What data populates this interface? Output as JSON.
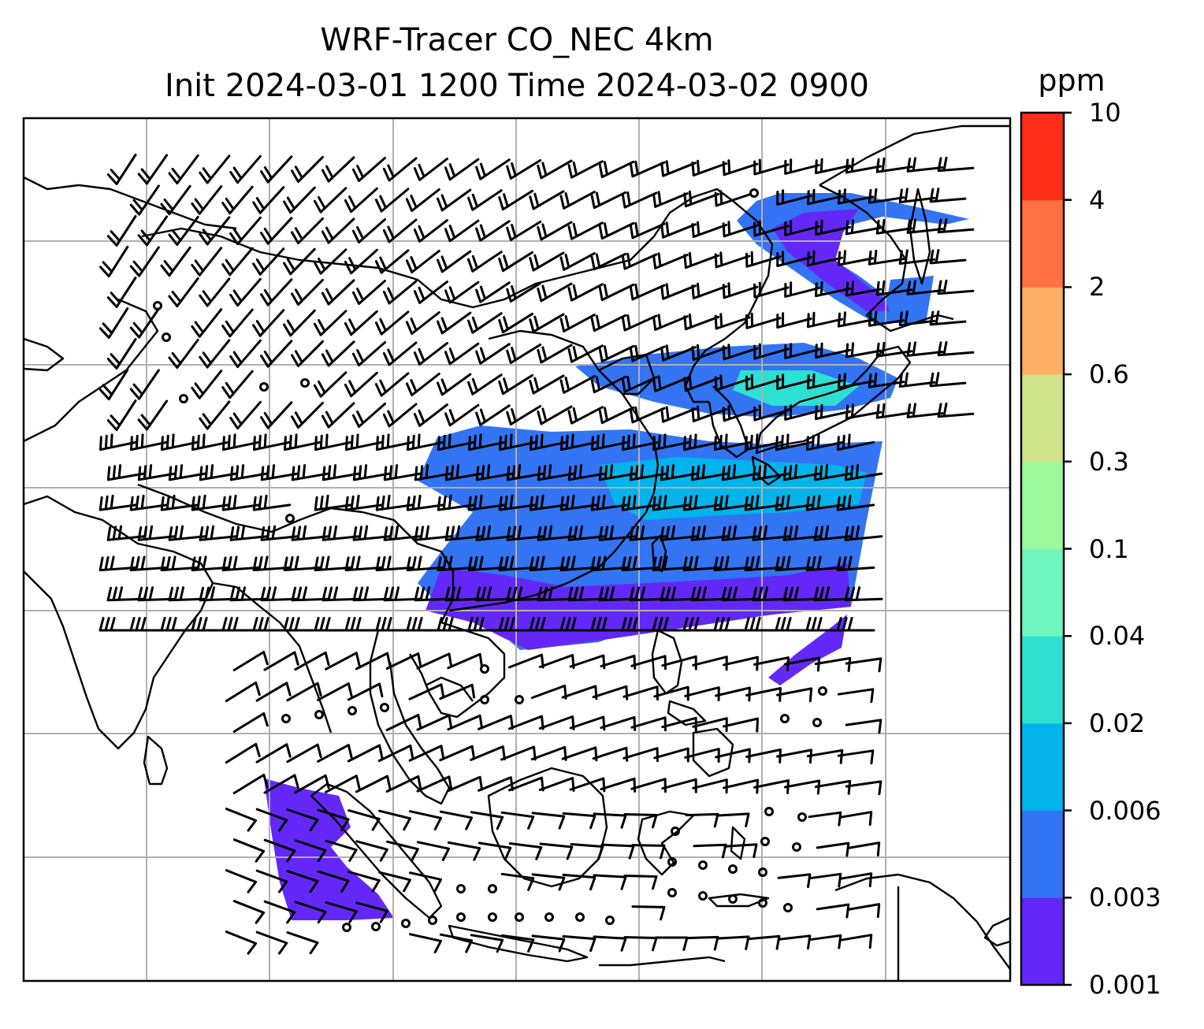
{
  "title": {
    "line1": "WRF-Tracer CO_NEC 4km",
    "line2": "Init 2024-03-01 1200 Time 2024-03-02 0900"
  },
  "colorbar": {
    "unit": "ppm",
    "levels": [
      "0.001",
      "0.003",
      "0.006",
      "0.02",
      "0.04",
      "0.1",
      "0.3",
      "0.6",
      "2",
      "4",
      "10"
    ],
    "colors": [
      "#6328f7",
      "#3274f3",
      "#03b3ec",
      "#2ee0d2",
      "#6ff5bf",
      "#9bf99b",
      "#cfe38b",
      "#fdb064",
      "#ff7140",
      "#ff2e1a"
    ]
  },
  "map": {
    "gridlines": true,
    "grid_color": "#b0b0b0",
    "coastline_color": "#000000",
    "wind_barb_color": "#000000",
    "calm_marker": "circle"
  }
}
